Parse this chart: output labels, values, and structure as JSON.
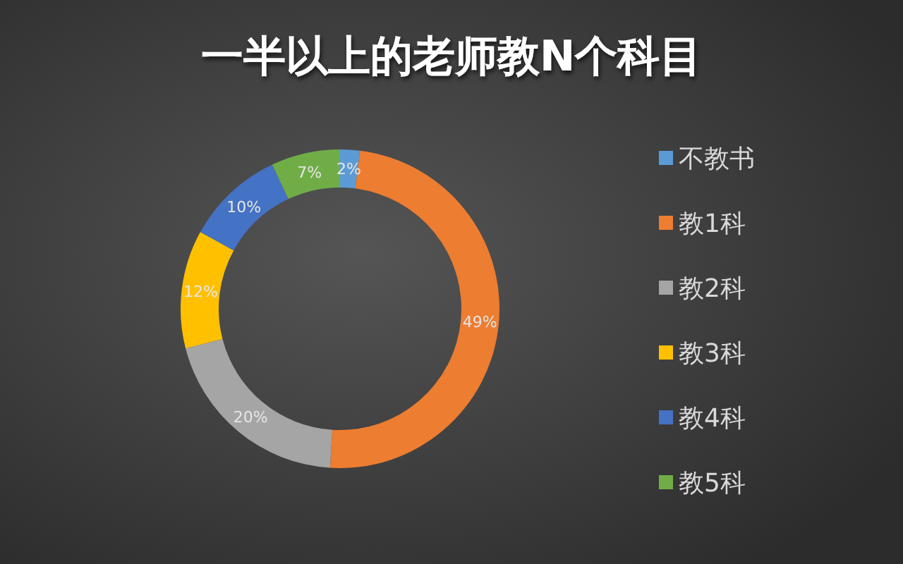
{
  "chart_data": {
    "type": "donut",
    "title": "一半以上的老师教N个科目",
    "categories": [
      "不教书",
      "教1科",
      "教2科",
      "教3科",
      "教4科",
      "教5科"
    ],
    "values": [
      2,
      49,
      20,
      12,
      10,
      7
    ],
    "colors": [
      "#5b9bd5",
      "#ed7d31",
      "#a5a5a5",
      "#ffc000",
      "#4472c4",
      "#70ad47"
    ],
    "value_labels": [
      "2%",
      "49%",
      "20%",
      "12%",
      "10%",
      "7%"
    ],
    "legend": "right"
  }
}
